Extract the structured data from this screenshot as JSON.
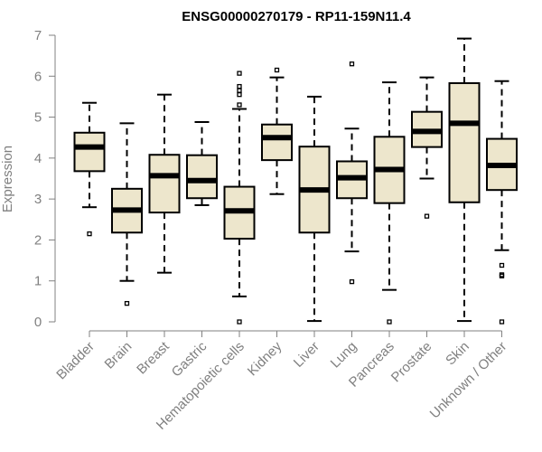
{
  "chart_data": {
    "type": "boxplot",
    "title": "ENSG00000270179 - RP11-159N11.4",
    "ylabel": "Expression",
    "xlabel": "",
    "ylim": [
      0,
      7
    ],
    "yticks": [
      0,
      1,
      2,
      3,
      4,
      5,
      6,
      7
    ],
    "grid": false,
    "colors": {
      "box_fill": "#ede6cc",
      "stroke": "#000000",
      "axis": "#808080"
    },
    "categories": [
      "Bladder",
      "Brain",
      "Breast",
      "Gastric",
      "Hematopoietic cells",
      "Kidney",
      "Liver",
      "Lung",
      "Pancreas",
      "Prostate",
      "Skin",
      "Unknown / Other"
    ],
    "boxes": [
      {
        "category": "Bladder",
        "whisker_low": 2.8,
        "q1": 3.68,
        "median": 4.27,
        "q3": 4.62,
        "whisker_high": 5.35,
        "outliers": [
          2.15
        ]
      },
      {
        "category": "Brain",
        "whisker_low": 1.0,
        "q1": 2.18,
        "median": 2.73,
        "q3": 3.25,
        "whisker_high": 4.85,
        "outliers": [
          0.45
        ]
      },
      {
        "category": "Breast",
        "whisker_low": 1.2,
        "q1": 2.67,
        "median": 3.57,
        "q3": 4.08,
        "whisker_high": 5.55,
        "outliers": []
      },
      {
        "category": "Gastric",
        "whisker_low": 2.85,
        "q1": 3.02,
        "median": 3.45,
        "q3": 4.07,
        "whisker_high": 4.88,
        "outliers": []
      },
      {
        "category": "Hematopoietic cells",
        "whisker_low": 0.62,
        "q1": 2.03,
        "median": 2.71,
        "q3": 3.3,
        "whisker_high": 5.2,
        "outliers": [
          0.0,
          5.3,
          5.55,
          5.65,
          5.75,
          6.07
        ]
      },
      {
        "category": "Kidney",
        "whisker_low": 3.12,
        "q1": 3.95,
        "median": 4.5,
        "q3": 4.82,
        "whisker_high": 5.97,
        "outliers": [
          6.15
        ]
      },
      {
        "category": "Liver",
        "whisker_low": 0.02,
        "q1": 2.18,
        "median": 3.22,
        "q3": 4.28,
        "whisker_high": 5.5,
        "outliers": []
      },
      {
        "category": "Lung",
        "whisker_low": 1.72,
        "q1": 3.02,
        "median": 3.52,
        "q3": 3.92,
        "whisker_high": 4.72,
        "outliers": [
          0.98,
          6.3
        ]
      },
      {
        "category": "Pancreas",
        "whisker_low": 0.78,
        "q1": 2.9,
        "median": 3.72,
        "q3": 4.52,
        "whisker_high": 5.85,
        "outliers": [
          0.0
        ]
      },
      {
        "category": "Prostate",
        "whisker_low": 3.5,
        "q1": 4.27,
        "median": 4.65,
        "q3": 5.13,
        "whisker_high": 5.97,
        "outliers": [
          2.58
        ]
      },
      {
        "category": "Skin",
        "whisker_low": 0.02,
        "q1": 2.92,
        "median": 4.85,
        "q3": 5.83,
        "whisker_high": 6.92,
        "outliers": []
      },
      {
        "category": "Unknown / Other",
        "whisker_low": 1.75,
        "q1": 3.22,
        "median": 3.82,
        "q3": 4.47,
        "whisker_high": 5.88,
        "outliers": [
          0.0,
          1.12,
          1.15,
          1.38
        ]
      }
    ]
  }
}
